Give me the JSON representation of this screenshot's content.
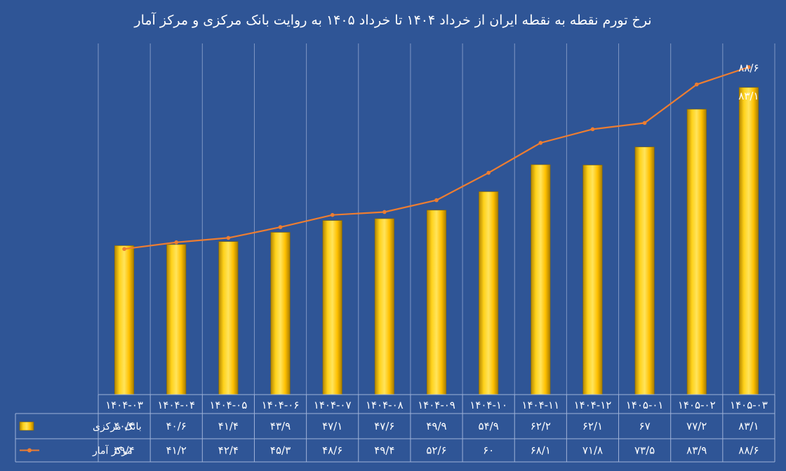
{
  "chart_data": {
    "type": "bar",
    "title": "نرخ تورم نقطه به نقطه ایران از خرداد ۱۴۰۴ تا خرداد ۱۴۰۵ به روایت بانک مرکزی و مرکز آمار",
    "categories": [
      "۱۴۰۴-۰۳",
      "۱۴۰۴-۰۴",
      "۱۴۰۴-۰۵",
      "۱۴۰۴-۰۶",
      "۱۴۰۴-۰۷",
      "۱۴۰۴-۰۸",
      "۱۴۰۴-۰۹",
      "۱۴۰۴-۱۰",
      "۱۴۰۴-۱۱",
      "۱۴۰۴-۱۲",
      "۱۴۰۵-۰۱",
      "۱۴۰۵-۰۲",
      "۱۴۰۵-۰۳"
    ],
    "series": [
      {
        "name": "بانک مرکزی",
        "type": "bar",
        "color": "#ffc000",
        "values": [
          40.3,
          40.6,
          41.4,
          43.9,
          47.1,
          47.6,
          49.9,
          54.9,
          62.2,
          62.1,
          67,
          77.2,
          83.1
        ],
        "labels": [
          "۴۰/۳",
          "۴۰/۶",
          "۴۱/۴",
          "۴۳/۹",
          "۴۷/۱",
          "۴۷/۶",
          "۴۹/۹",
          "۵۴/۹",
          "۶۲/۲",
          "۶۲/۱",
          "۶۷",
          "۷۷/۲",
          "۸۳/۱"
        ]
      },
      {
        "name": "مرکز آمار",
        "type": "line",
        "color": "#ed7d31",
        "values": [
          39.4,
          41.2,
          42.4,
          45.3,
          48.6,
          49.4,
          52.6,
          60,
          68.1,
          71.8,
          73.5,
          83.9,
          88.6
        ],
        "labels": [
          "۳۹/۴",
          "۴۱/۲",
          "۴۲/۴",
          "۴۵/۳",
          "۴۸/۶",
          "۴۹/۴",
          "۵۲/۶",
          "۶۰",
          "۶۸/۱",
          "۷۱/۸",
          "۷۳/۵",
          "۸۳/۹",
          "۸۸/۶"
        ]
      }
    ],
    "data_labels_last": {
      "line": "۸۸/۶",
      "bar": "۸۳/۱"
    },
    "ylim": [
      0,
      95
    ],
    "xlabel": "",
    "ylabel": "",
    "grid": "vertical",
    "legend": "in data table",
    "data_table": true
  }
}
